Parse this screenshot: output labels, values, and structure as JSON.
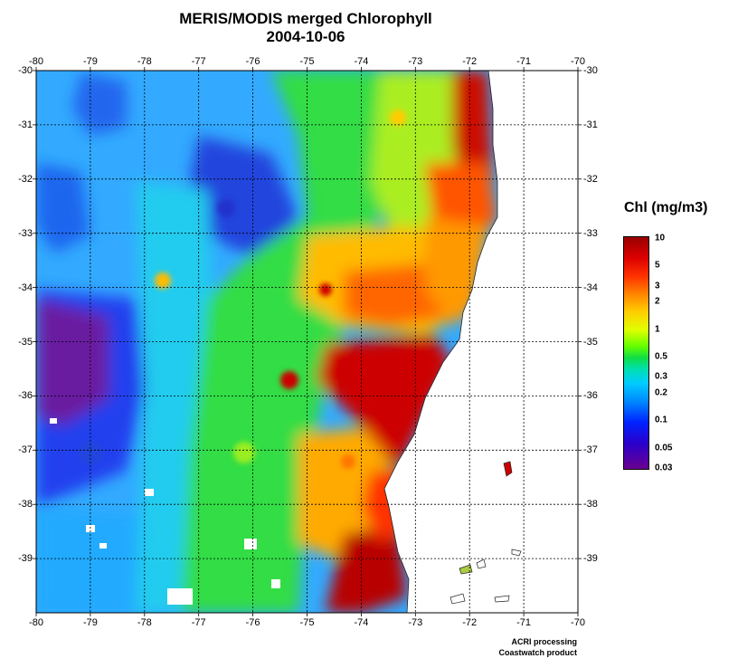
{
  "title": {
    "line1": "MERIS/MODIS merged Chlorophyll",
    "line2": "2004-10-06"
  },
  "axes": {
    "longitude_ticks": [
      "-80",
      "-79",
      "-78",
      "-77",
      "-76",
      "-75",
      "-74",
      "-73",
      "-72",
      "-71",
      "-70"
    ],
    "latitude_ticks": [
      "-30",
      "-31",
      "-32",
      "-33",
      "-34",
      "-35",
      "-36",
      "-37",
      "-38",
      "-39"
    ],
    "lon_range": [
      -80,
      -70
    ],
    "lat_range": [
      -30,
      -40
    ],
    "grid": "dotted"
  },
  "legend": {
    "title": "Chl (mg/m3)",
    "scale": "log",
    "range": [
      0.03,
      10
    ],
    "labels": [
      "10",
      "5",
      "3",
      "2",
      "1",
      "0.5",
      "0.3",
      "0.2",
      "0.1",
      "0.05",
      "0.03"
    ],
    "low_color": "#6a0090",
    "high_color": "#9a0000"
  },
  "credits": {
    "line1": "ACRI processing",
    "line2": "Coastwatch product"
  },
  "colors": {
    "ocean_offshore": "#33aaff",
    "ocean_mid": "#22dd66",
    "coastal_high": "#cc0000",
    "land": "#ffffff"
  }
}
